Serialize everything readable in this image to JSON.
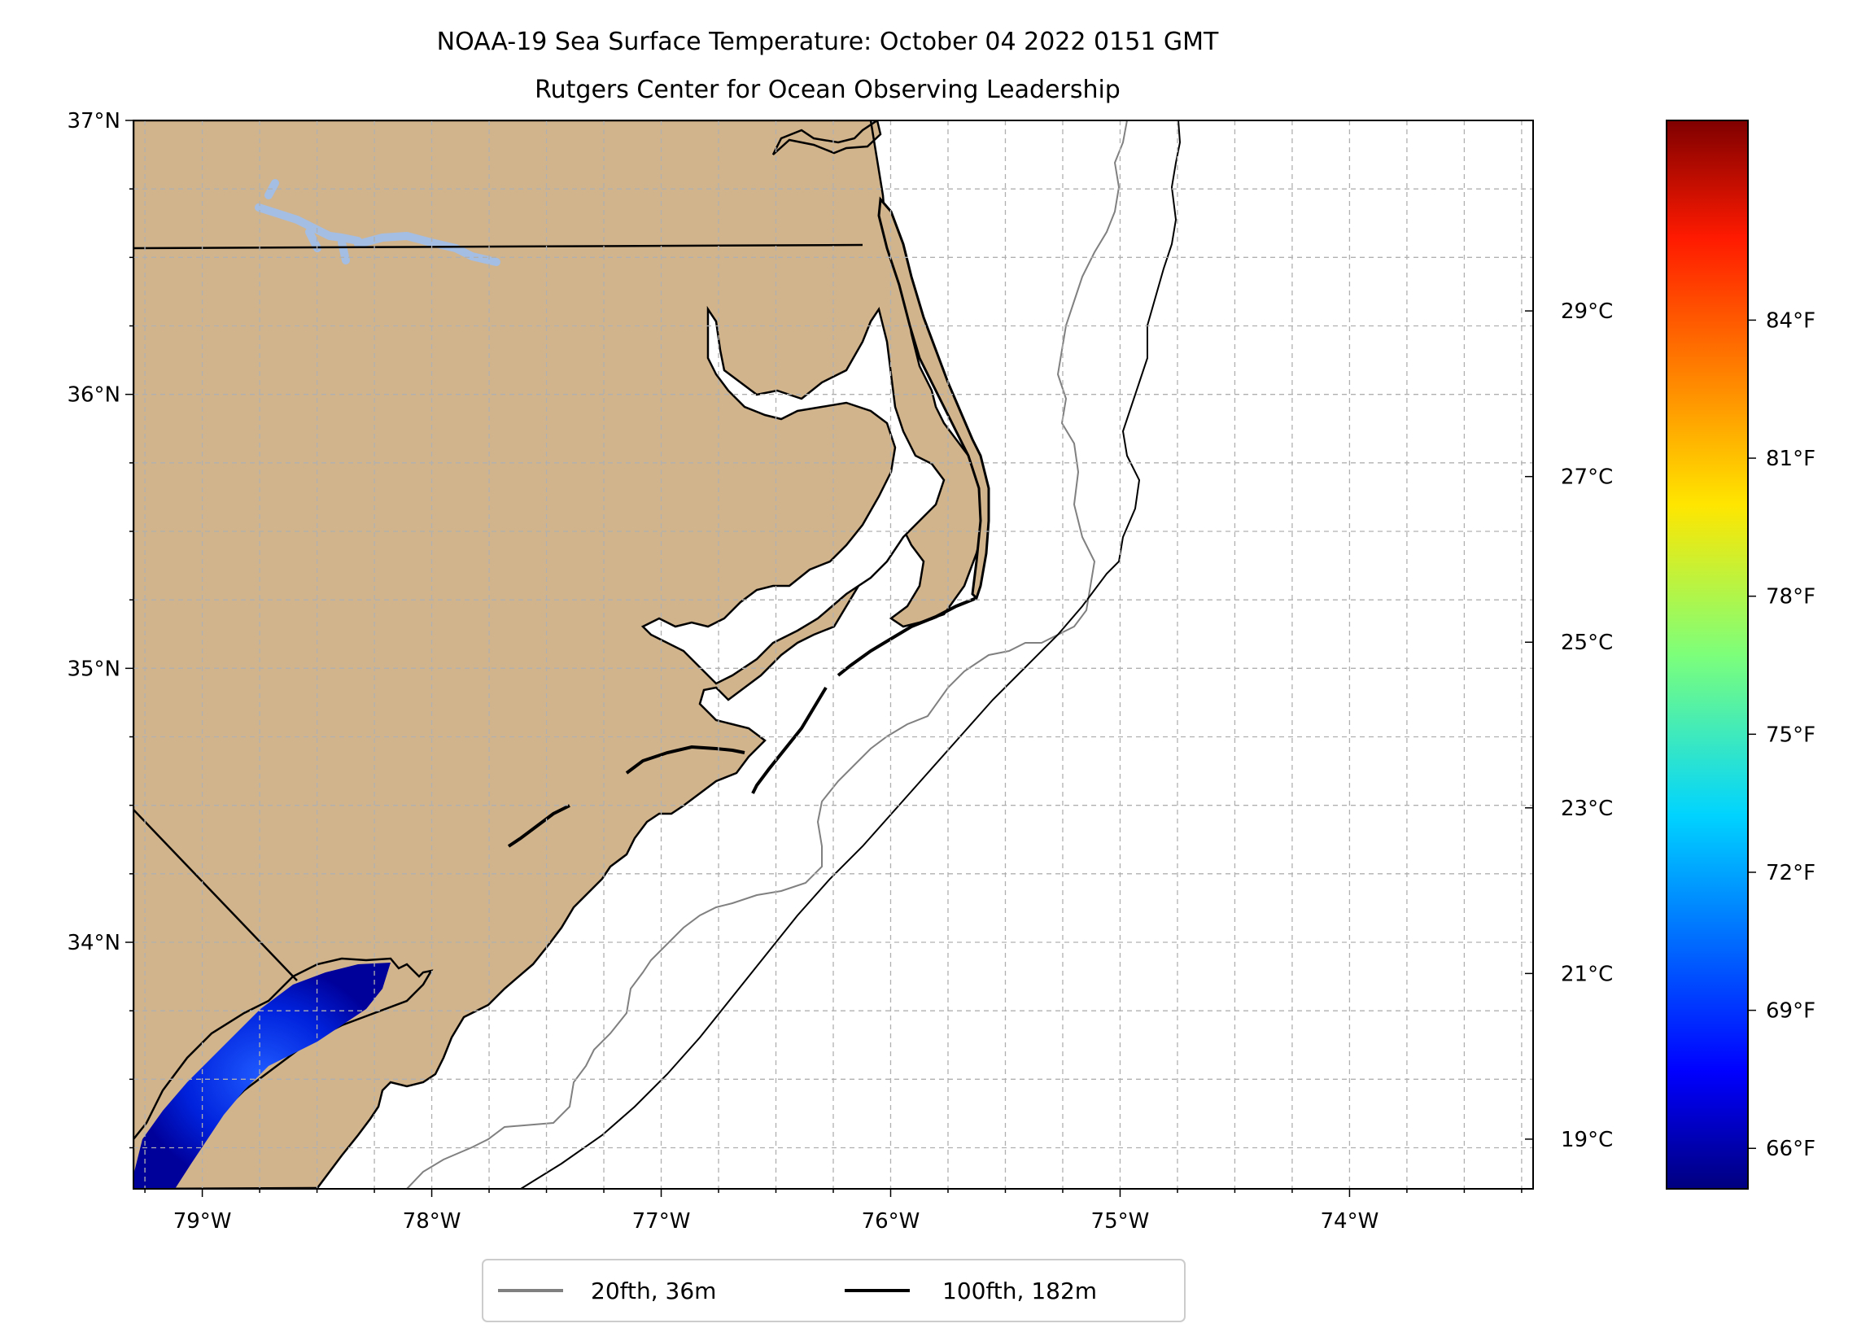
{
  "title": {
    "line1": "NOAA-19 Sea Surface Temperature: October 04 2022 0151 GMT",
    "line2": "Rutgers Center for Ocean Observing Leadership"
  },
  "map": {
    "lon_range": [
      -79.3,
      -73.2
    ],
    "lat_range": [
      33.1,
      37.0
    ],
    "lon_ticks": [
      {
        "value": -79,
        "label": "79°W"
      },
      {
        "value": -78,
        "label": "78°W"
      },
      {
        "value": -77,
        "label": "77°W"
      },
      {
        "value": -76,
        "label": "76°W"
      },
      {
        "value": -75,
        "label": "75°W"
      },
      {
        "value": -74,
        "label": "74°W"
      }
    ],
    "lat_ticks": [
      {
        "value": 37,
        "label": "37°N"
      },
      {
        "value": 36,
        "label": "36°N"
      },
      {
        "value": 35,
        "label": "35°N"
      },
      {
        "value": 34,
        "label": "34°N"
      }
    ],
    "colors": {
      "land": "#d2b48c",
      "lake": "#a3bde3",
      "isobath_20": "#808080",
      "isobath_100": "#000000",
      "grid": "#b0b0b0"
    },
    "grid": "dashed"
  },
  "legend": {
    "placement": "bottom-center",
    "items": [
      {
        "label": "20fth, 36m",
        "color": "#808080"
      },
      {
        "label": "100fth, 182m",
        "color": "#000000"
      }
    ]
  },
  "colorbar": {
    "colormap": "jet",
    "celsius_ticks": [
      {
        "value": 29,
        "label": "29°C"
      },
      {
        "value": 27,
        "label": "27°C"
      },
      {
        "value": 25,
        "label": "25°C"
      },
      {
        "value": 23,
        "label": "23°C"
      },
      {
        "value": 21,
        "label": "21°C"
      },
      {
        "value": 19,
        "label": "19°C"
      }
    ],
    "fahrenheit_ticks": [
      {
        "value": 84,
        "label": "84°F"
      },
      {
        "value": 81,
        "label": "81°F"
      },
      {
        "value": 78,
        "label": "78°F"
      },
      {
        "value": 75,
        "label": "75°F"
      },
      {
        "value": 72,
        "label": "72°F"
      },
      {
        "value": 69,
        "label": "69°F"
      },
      {
        "value": 66,
        "label": "66°F"
      }
    ]
  }
}
